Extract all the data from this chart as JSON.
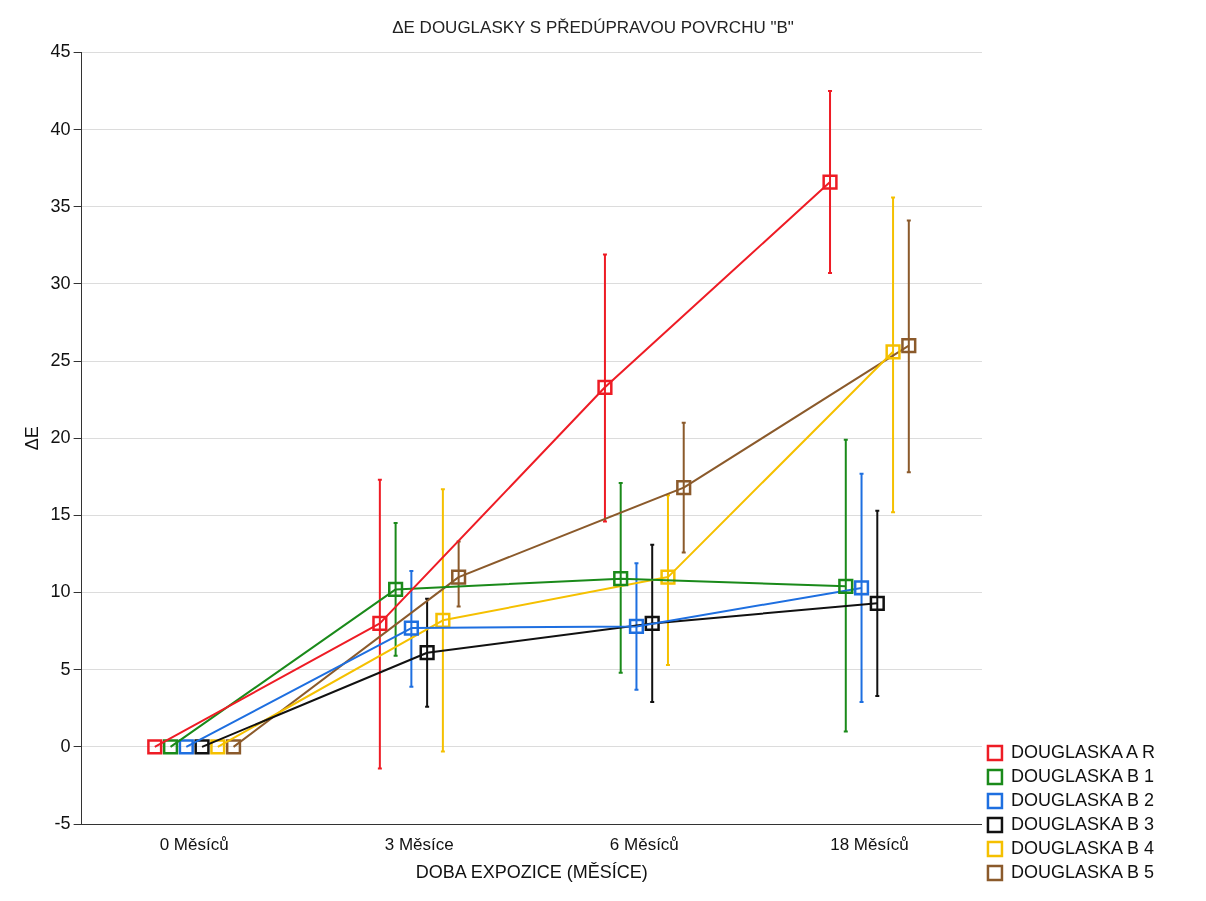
{
  "chart_data": {
    "type": "line",
    "title": "ΔE DOUGLASKY S PŘEDÚPRAVOU POVRCHU \"B\"",
    "xlabel": "DOBA EXPOZICE (MĚSÍCE)",
    "ylabel": "ΔE",
    "categories": [
      "0 Měsíců",
      "3 Měsíce",
      "6 Měsíců",
      "18 Měsíců"
    ],
    "ylim": [
      -5,
      45
    ],
    "yticks": [
      -5,
      0,
      5,
      10,
      15,
      20,
      25,
      30,
      35,
      40,
      45
    ],
    "grid": "y",
    "legend": "bottom right",
    "marker": "square",
    "line_style": "solid",
    "series": [
      {
        "name": "DOUGLASKA A R",
        "color": "#ee1c25",
        "values": [
          0,
          8.0,
          23.3,
          36.6
        ],
        "errors": [
          null,
          [
            -1.4,
            17.3
          ],
          [
            14.6,
            31.9
          ],
          [
            30.7,
            42.5
          ]
        ]
      },
      {
        "name": "DOUGLASKA B 1",
        "color": "#1a8a1a",
        "values": [
          0,
          10.2,
          10.9,
          10.4
        ],
        "errors": [
          null,
          [
            5.9,
            14.5
          ],
          [
            4.8,
            17.1
          ],
          [
            1.0,
            19.9
          ]
        ]
      },
      {
        "name": "DOUGLASKA B 2",
        "color": "#1e6fe0",
        "values": [
          0,
          7.7,
          7.8,
          10.3
        ],
        "errors": [
          null,
          [
            3.9,
            11.4
          ],
          [
            3.7,
            11.9
          ],
          [
            2.9,
            17.7
          ]
        ]
      },
      {
        "name": "DOUGLASKA B 3",
        "color": "#111111",
        "values": [
          0,
          6.1,
          8.0,
          9.3
        ],
        "errors": [
          null,
          [
            2.6,
            9.6
          ],
          [
            2.9,
            13.1
          ],
          [
            3.3,
            15.3
          ]
        ]
      },
      {
        "name": "DOUGLASKA B 4",
        "color": "#f5c000",
        "values": [
          0,
          8.2,
          11.0,
          25.6
        ],
        "errors": [
          null,
          [
            -0.3,
            16.7
          ],
          [
            5.3,
            16.3
          ],
          [
            15.2,
            35.6
          ]
        ]
      },
      {
        "name": "DOUGLASKA B 5",
        "color": "#8b5a2b",
        "values": [
          0,
          11.0,
          16.8,
          26.0
        ],
        "errors": [
          null,
          [
            9.1,
            13.3
          ],
          [
            12.6,
            21.0
          ],
          [
            17.8,
            34.1
          ]
        ]
      }
    ]
  }
}
